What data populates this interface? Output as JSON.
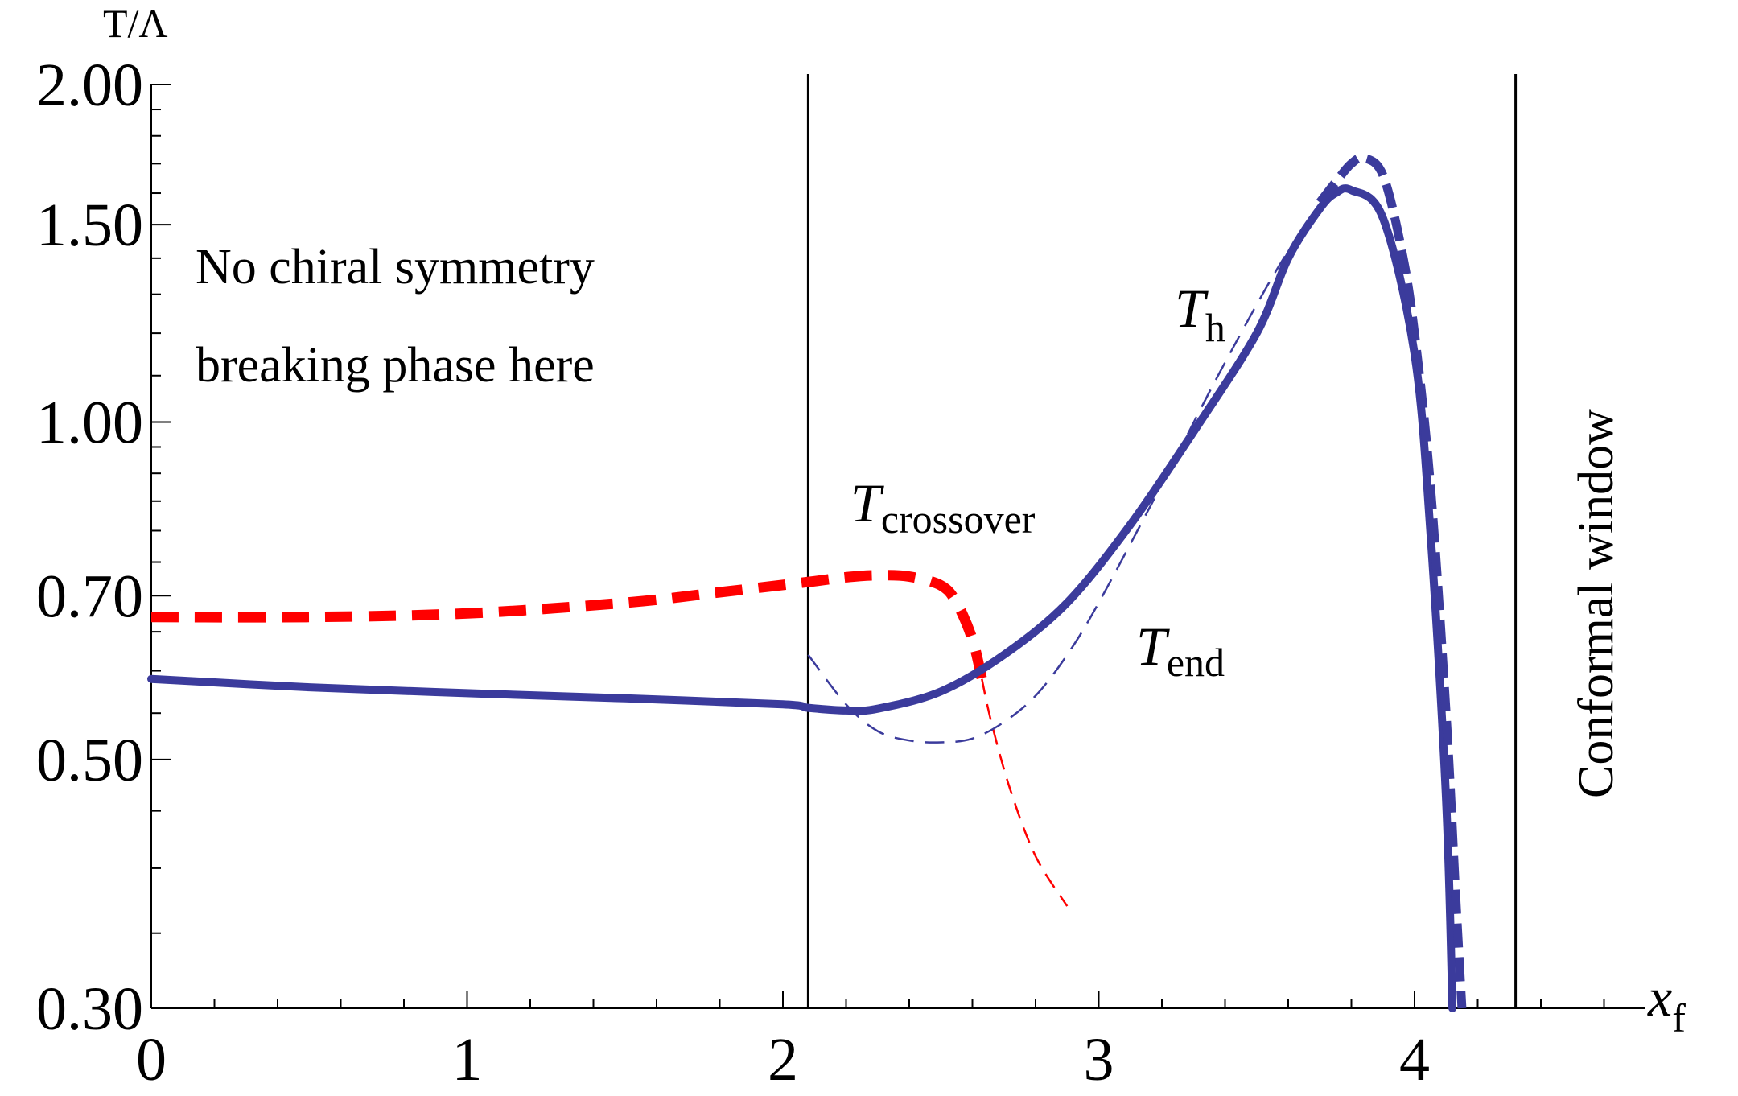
{
  "chart_data": {
    "type": "line",
    "title": "",
    "xlabel": "x",
    "xlabel_sub": "f",
    "ylabel": "T/Λ",
    "xlim": [
      0,
      4.7
    ],
    "ylim": [
      0.3,
      2.0
    ],
    "y_scale": "log",
    "grid": false,
    "x_ticks": [
      {
        "value": 0,
        "label": "0"
      },
      {
        "value": 1,
        "label": "1"
      },
      {
        "value": 2,
        "label": "2"
      },
      {
        "value": 3,
        "label": "3"
      },
      {
        "value": 4,
        "label": "4"
      }
    ],
    "y_ticks": [
      {
        "value": 0.3,
        "label": "0.30"
      },
      {
        "value": 0.5,
        "label": "0.50"
      },
      {
        "value": 0.7,
        "label": "0.70"
      },
      {
        "value": 1.0,
        "label": "1.00"
      },
      {
        "value": 1.5,
        "label": "1.50"
      },
      {
        "value": 2.0,
        "label": "2.00"
      }
    ],
    "vlines": [
      {
        "x": 2.08
      },
      {
        "x": 4.32
      }
    ],
    "series": [
      {
        "style": "red-thick-dashed",
        "color": "#ff0000",
        "x": [
          0.0,
          0.5,
          1.0,
          1.5,
          1.8,
          2.08,
          2.2,
          2.3,
          2.4,
          2.5,
          2.55,
          2.6,
          2.63
        ],
        "y": [
          0.67,
          0.67,
          0.675,
          0.69,
          0.705,
          0.72,
          0.727,
          0.73,
          0.728,
          0.715,
          0.69,
          0.64,
          0.59
        ]
      },
      {
        "style": "red-thin-dashed",
        "color": "#ff0000",
        "x": [
          2.63,
          2.66,
          2.72,
          2.8,
          2.9
        ],
        "y": [
          0.59,
          0.54,
          0.47,
          0.41,
          0.37
        ]
      },
      {
        "style": "blue-thick-solid",
        "color": "#3b3b9c",
        "x": [
          0.0,
          0.5,
          1.0,
          1.5,
          2.0,
          2.08,
          2.2,
          2.3,
          2.5,
          2.7,
          2.9,
          3.1,
          3.3,
          3.5,
          3.6,
          3.7,
          3.75,
          3.8,
          3.9,
          4.0,
          4.05,
          4.1,
          4.12
        ],
        "y": [
          0.59,
          0.58,
          0.573,
          0.567,
          0.56,
          0.556,
          0.553,
          0.555,
          0.575,
          0.62,
          0.69,
          0.81,
          0.98,
          1.2,
          1.4,
          1.55,
          1.6,
          1.61,
          1.52,
          1.15,
          0.8,
          0.46,
          0.3
        ]
      },
      {
        "style": "blue-thick-dashed",
        "color": "#3b3b9c",
        "x": [
          3.7,
          3.76,
          3.8,
          3.84,
          3.9,
          3.96,
          4.0,
          4.05,
          4.1,
          4.13,
          4.15
        ],
        "y": [
          1.57,
          1.65,
          1.7,
          1.72,
          1.66,
          1.42,
          1.2,
          0.88,
          0.55,
          0.38,
          0.3
        ]
      },
      {
        "style": "blue-thin-dashed",
        "color": "#3b3b9c",
        "x": [
          2.08,
          2.2,
          2.3,
          2.4,
          2.5,
          2.6,
          2.7,
          2.8,
          2.9,
          3.0,
          3.2,
          3.4,
          3.6,
          3.75
        ],
        "y": [
          0.62,
          0.56,
          0.53,
          0.52,
          0.518,
          0.522,
          0.54,
          0.57,
          0.62,
          0.69,
          0.88,
          1.13,
          1.42,
          1.6
        ]
      }
    ],
    "annotations": [
      {
        "id": "phase-line1",
        "text": "No chiral symmetry"
      },
      {
        "id": "phase-line2",
        "text": "breaking phase here"
      },
      {
        "id": "conformal",
        "text": "Conformal window"
      },
      {
        "id": "th",
        "text": "T",
        "sub": "h"
      },
      {
        "id": "tcross",
        "text": "T",
        "sub": "crossover"
      },
      {
        "id": "tend",
        "text": "T",
        "sub": "end"
      }
    ]
  }
}
